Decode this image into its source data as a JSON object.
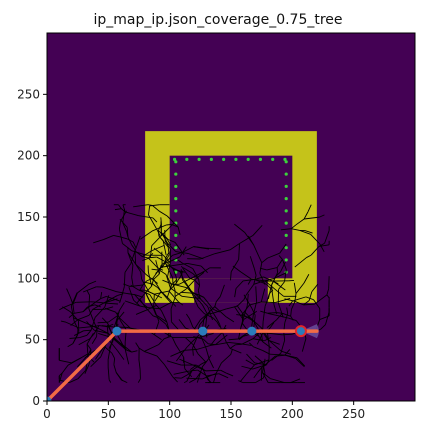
{
  "chart_data": {
    "type": "heatmap",
    "title": "ip_map_ip.json_coverage_0.75_tree",
    "xlabel": "",
    "ylabel": "",
    "xlim": [
      0,
      300
    ],
    "ylim": [
      0,
      300
    ],
    "xticks": [
      0,
      50,
      100,
      150,
      200,
      250
    ],
    "yticks": [
      0,
      50,
      100,
      150,
      200,
      250
    ],
    "grid": false,
    "colors": {
      "background": "#440154",
      "obstacle": "#c5c31a",
      "tree": "#000000",
      "path": "#f26b45",
      "waypoint": "#2b7bba",
      "goal_ring": "#e0262b",
      "coverage_points": "#3cd23c",
      "fan": "#6a4c9c"
    },
    "obstacle_u": {
      "outer": {
        "x": [
          80,
          220
        ],
        "y": [
          80,
          220
        ]
      },
      "inner": {
        "x": [
          100,
          200
        ],
        "y": [
          100,
          200
        ]
      },
      "gap": {
        "x": [
          120,
          180
        ],
        "y": [
          80,
          100
        ]
      }
    },
    "coverage_points": {
      "top_row": {
        "y": 197,
        "x": [
          104,
          114,
          124,
          134,
          144,
          154,
          164,
          174,
          184,
          194
        ]
      },
      "left_col": {
        "x": 105,
        "y": [
          105,
          115,
          125,
          135,
          145,
          155,
          165,
          175,
          185,
          195
        ]
      },
      "right_col": {
        "x": 195,
        "y": [
          105,
          115,
          125,
          135,
          145,
          155,
          165,
          175,
          185,
          195
        ]
      }
    },
    "path": {
      "x": [
        0,
        57,
        127,
        167,
        207,
        220
      ],
      "y": [
        0,
        57,
        57,
        57,
        57,
        57
      ]
    },
    "waypoints": {
      "x": [
        0,
        57,
        127,
        167,
        207
      ],
      "y": [
        0,
        57,
        57,
        57,
        57
      ]
    },
    "goal": {
      "x": 207,
      "y": 57
    },
    "fan_end": {
      "x": 220,
      "y": 57
    }
  }
}
